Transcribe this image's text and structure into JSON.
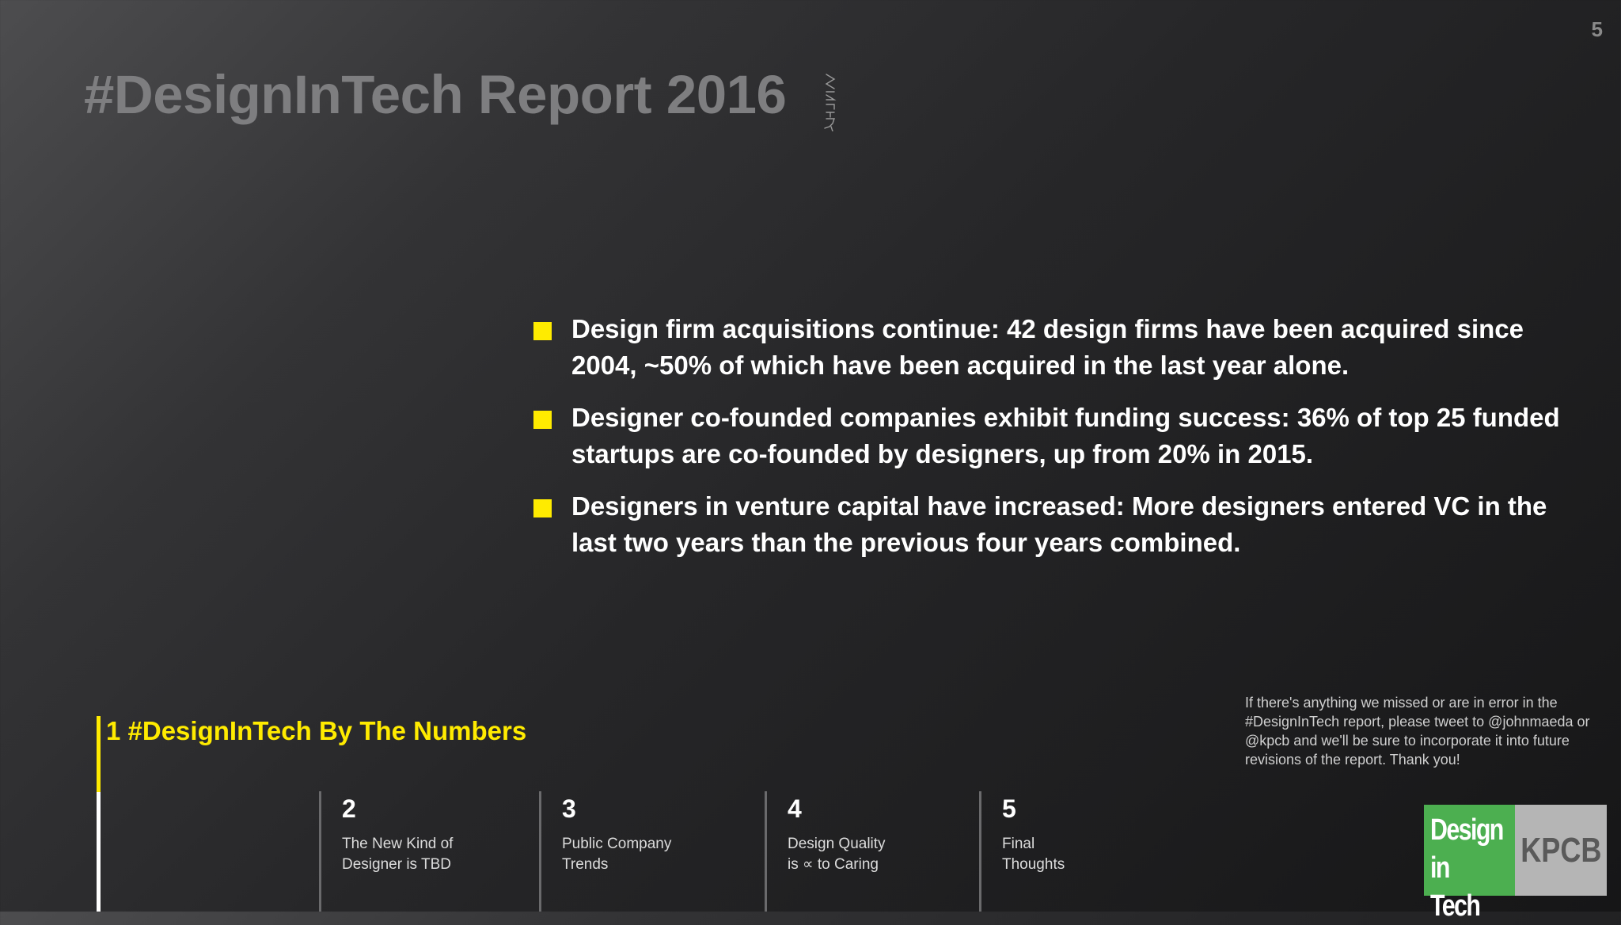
{
  "slide_number": "5",
  "title": "#DesignInTech Report 2016",
  "signature_text": "MAEDA",
  "bullets": [
    "Design firm acquisitions continue: 42 design firms have been acquired since 2004, ~50% of which have been acquired in the last year alone.",
    "Designer co-founded companies exhibit funding success: 36% of top 25 funded startups are co-founded by designers, up from 20% in 2015.",
    "Designers in venture capital have increased: More designers entered VC in the last two years than the previous four years combined."
  ],
  "nav": {
    "active": {
      "label": "1 #DesignInTech By The Numbers"
    },
    "sections": [
      {
        "num": "2",
        "label": "The New Kind of\nDesigner is TBD"
      },
      {
        "num": "3",
        "label": "Public Company\nTrends"
      },
      {
        "num": "4",
        "label": "Design Quality\nis ∝ to Caring"
      },
      {
        "num": "5",
        "label": "Final\nThoughts"
      }
    ]
  },
  "note": "If there's anything we missed or are in error in the #DesignInTech report, please tweet to @johnmaeda or @kpcb and we'll be sure to incorporate it into future revisions of the report. Thank you!",
  "logo": {
    "line1": "Design",
    "line2": "in Tech",
    "brand": "KPCB"
  },
  "colors": {
    "accent": "#ffeb00",
    "logo_green": "#4caf50",
    "logo_gray": "#b5b5b5"
  }
}
